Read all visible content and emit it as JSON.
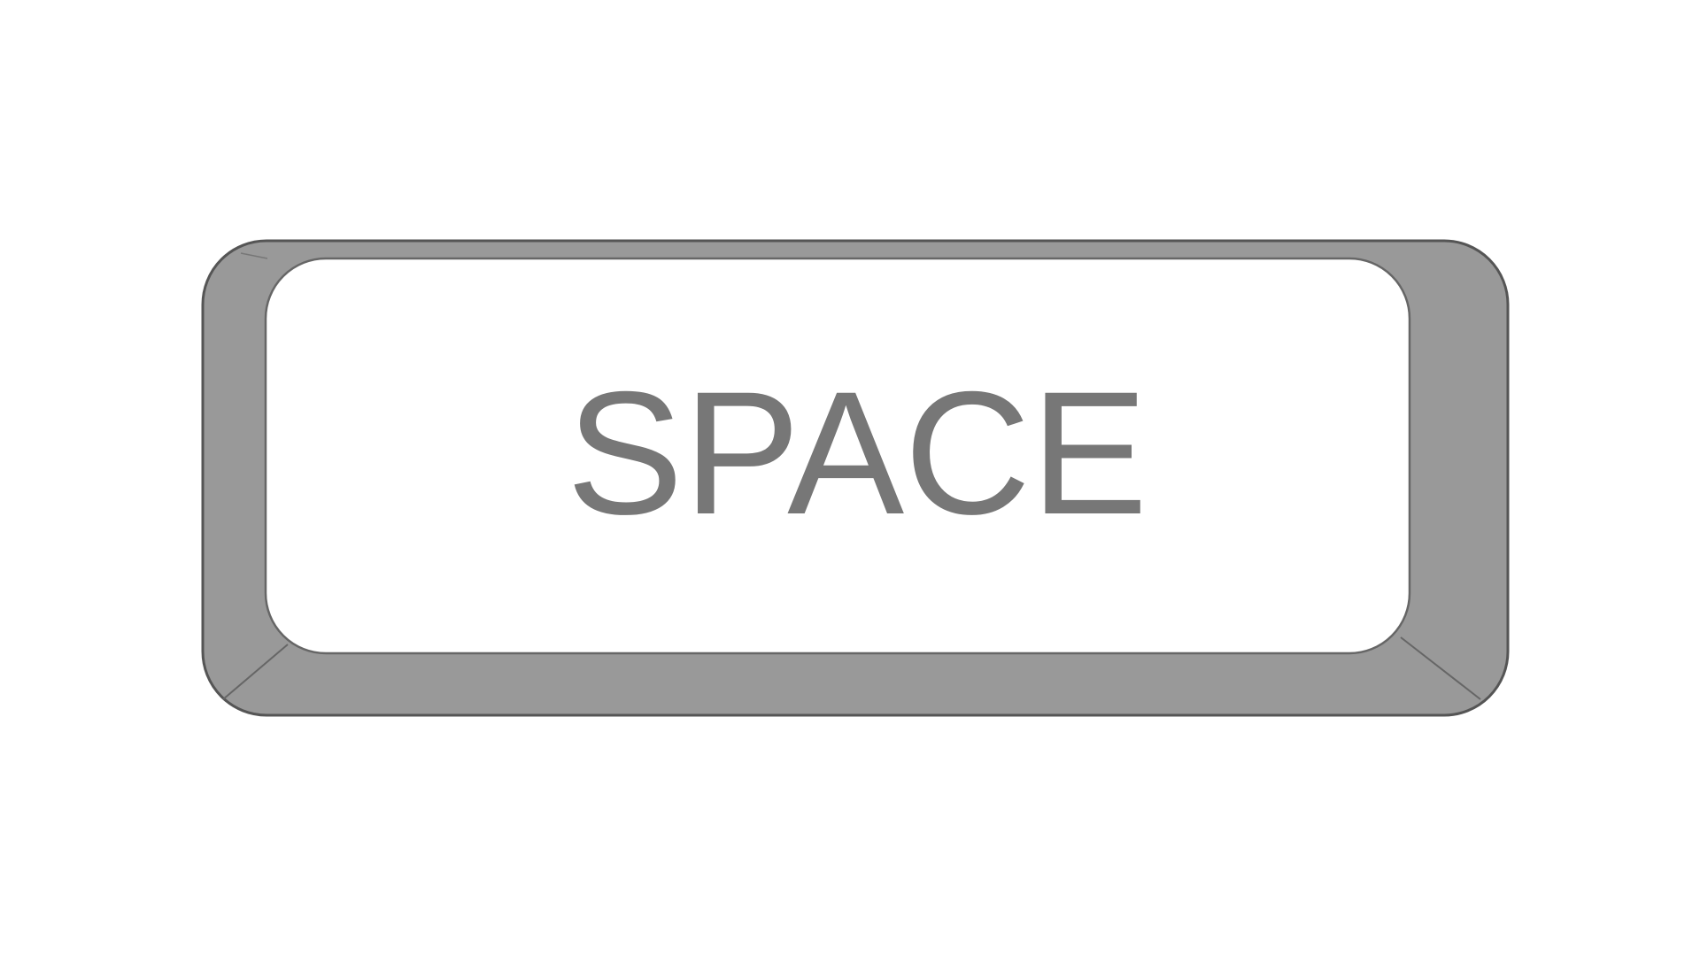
{
  "key": {
    "label": "SPACE",
    "label_color": "#777777",
    "frame_color": "#999999",
    "outline_color": "#555555",
    "face_color": "#ffffff",
    "background_color": "#ffffff",
    "icon": "spacebar-key-icon"
  }
}
